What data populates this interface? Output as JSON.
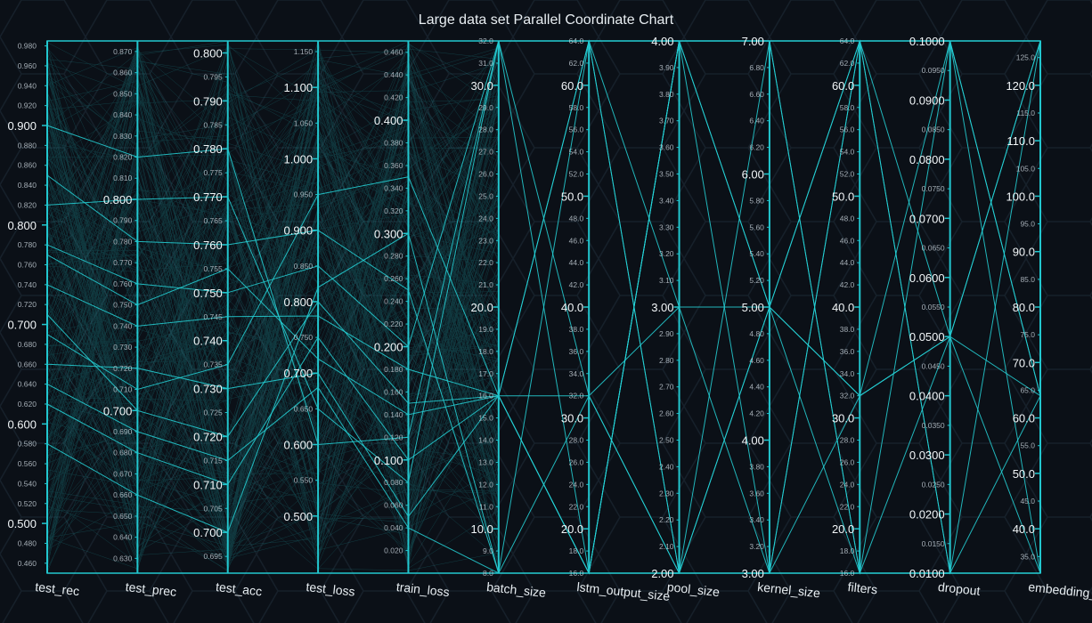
{
  "chart_data": {
    "type": "parallel-coordinates",
    "title": "Large data set Parallel Coordinate Chart",
    "grid": false,
    "colors": {
      "background": "#0b1017",
      "axis": "#22c7cf",
      "line": "#26d4d8",
      "title": "#e8eef2",
      "tick_text": "#c9d3db",
      "axis_label": "#e8eef2",
      "hex_pattern": "#16202a"
    },
    "axes": [
      {
        "name": "test_rec",
        "min": 0.45,
        "max": 0.985,
        "major_ticks": [
          0.5,
          0.6,
          0.7,
          0.8,
          0.9
        ],
        "major_decimals": 3,
        "minor_ticks": [
          0.46,
          0.48,
          0.52,
          0.54,
          0.56,
          0.58,
          0.62,
          0.64,
          0.66,
          0.68,
          0.72,
          0.74,
          0.76,
          0.78,
          0.82,
          0.84,
          0.86,
          0.88,
          0.92,
          0.94,
          0.96,
          0.98
        ],
        "minor_decimals": 3
      },
      {
        "name": "test_prec",
        "min": 0.623,
        "max": 0.875,
        "major_ticks": [
          0.7,
          0.8
        ],
        "major_decimals": 3,
        "minor_ticks": [
          0.63,
          0.64,
          0.65,
          0.66,
          0.67,
          0.68,
          0.69,
          0.71,
          0.72,
          0.73,
          0.74,
          0.75,
          0.76,
          0.77,
          0.78,
          0.79,
          0.81,
          0.82,
          0.83,
          0.84,
          0.85,
          0.86,
          0.87
        ],
        "minor_decimals": 3
      },
      {
        "name": "test_acc",
        "min": 0.6915,
        "max": 0.8025,
        "major_ticks": [
          0.7,
          0.71,
          0.72,
          0.73,
          0.74,
          0.75,
          0.76,
          0.77,
          0.78,
          0.79,
          0.8
        ],
        "major_decimals": 3,
        "minor_ticks": [
          0.695,
          0.705,
          0.715,
          0.725,
          0.735,
          0.745,
          0.755,
          0.765,
          0.775,
          0.785,
          0.795
        ],
        "minor_decimals": 3
      },
      {
        "name": "test_loss",
        "min": 0.42,
        "max": 1.165,
        "major_ticks": [
          0.5,
          0.6,
          0.7,
          0.8,
          0.9,
          1.0,
          1.1
        ],
        "major_decimals": 3,
        "minor_ticks": [
          0.55,
          0.65,
          0.75,
          0.85,
          0.95,
          1.05,
          1.15
        ],
        "minor_decimals": 3
      },
      {
        "name": "train_loss",
        "min": 0.0,
        "max": 0.47,
        "major_ticks": [
          0.1,
          0.2,
          0.3,
          0.4
        ],
        "major_decimals": 3,
        "minor_ticks": [
          0.02,
          0.04,
          0.06,
          0.08,
          0.12,
          0.14,
          0.16,
          0.18,
          0.22,
          0.24,
          0.26,
          0.28,
          0.32,
          0.34,
          0.36,
          0.38,
          0.42,
          0.44,
          0.46
        ],
        "minor_decimals": 3
      },
      {
        "name": "batch_size",
        "min": 8.0,
        "max": 32.0,
        "major_ticks": [
          10.0,
          20.0,
          30.0
        ],
        "major_decimals": 1,
        "minor_ticks": [
          8,
          9,
          11,
          12,
          13,
          14,
          15,
          16,
          17,
          18,
          19,
          21,
          22,
          23,
          24,
          25,
          26,
          27,
          28,
          29,
          31,
          32
        ],
        "minor_decimals": 1
      },
      {
        "name": "lstm_output_size",
        "min": 16.0,
        "max": 64.0,
        "major_ticks": [
          20.0,
          30.0,
          40.0,
          50.0,
          60.0
        ],
        "major_decimals": 1,
        "minor_ticks": [
          16,
          18,
          22,
          24,
          26,
          28,
          32,
          34,
          36,
          38,
          42,
          44,
          46,
          48,
          52,
          54,
          56,
          58,
          62,
          64
        ],
        "minor_decimals": 1
      },
      {
        "name": "pool_size",
        "min": 2.0,
        "max": 4.0,
        "major_ticks": [
          2.0,
          3.0,
          4.0
        ],
        "major_decimals": 2,
        "minor_ticks": [
          2.1,
          2.2,
          2.3,
          2.4,
          2.5,
          2.6,
          2.7,
          2.8,
          2.9,
          3.1,
          3.2,
          3.3,
          3.4,
          3.5,
          3.6,
          3.7,
          3.8,
          3.9
        ],
        "minor_decimals": 2
      },
      {
        "name": "kernel_size",
        "min": 3.0,
        "max": 7.0,
        "major_ticks": [
          3.0,
          4.0,
          5.0,
          6.0,
          7.0
        ],
        "major_decimals": 2,
        "minor_ticks": [
          3.2,
          3.4,
          3.6,
          3.8,
          4.2,
          4.4,
          4.6,
          4.8,
          5.2,
          5.4,
          5.6,
          5.8,
          6.2,
          6.4,
          6.6,
          6.8
        ],
        "minor_decimals": 2
      },
      {
        "name": "filters",
        "min": 16.0,
        "max": 64.0,
        "major_ticks": [
          20.0,
          30.0,
          40.0,
          50.0,
          60.0
        ],
        "major_decimals": 1,
        "minor_ticks": [
          16,
          18,
          22,
          24,
          26,
          28,
          32,
          34,
          36,
          38,
          42,
          44,
          46,
          48,
          52,
          54,
          56,
          58,
          62,
          64
        ],
        "minor_decimals": 1
      },
      {
        "name": "dropout",
        "min": 0.01,
        "max": 0.1,
        "major_ticks": [
          0.01,
          0.02,
          0.03,
          0.04,
          0.05,
          0.06,
          0.07,
          0.08,
          0.09,
          0.1
        ],
        "major_decimals": 4,
        "minor_ticks": [
          0.015,
          0.025,
          0.035,
          0.045,
          0.055,
          0.065,
          0.075,
          0.085,
          0.095
        ],
        "minor_decimals": 4
      },
      {
        "name": "embedding_dim",
        "min": 32.0,
        "max": 128.0,
        "major_ticks": [
          40.0,
          50.0,
          60.0,
          70.0,
          80.0,
          90.0,
          100.0,
          110.0,
          120.0
        ],
        "major_decimals": 1,
        "minor_ticks": [
          35,
          45,
          55,
          65,
          75,
          85,
          95,
          105,
          115,
          125
        ],
        "minor_decimals": 1
      }
    ],
    "records_note_free": true,
    "records": [
      [
        0.71,
        0.7,
        0.72,
        0.8,
        0.15,
        16,
        64,
        2,
        5,
        64,
        0.1,
        128
      ],
      [
        0.62,
        0.68,
        0.71,
        0.75,
        0.1,
        16,
        16,
        4,
        5,
        32,
        0.05,
        128
      ],
      [
        0.78,
        0.76,
        0.75,
        0.85,
        0.2,
        32,
        16,
        4,
        3,
        16,
        0.1,
        64
      ],
      [
        0.85,
        0.78,
        0.76,
        0.9,
        0.25,
        8,
        64,
        2,
        7,
        64,
        0.01,
        32
      ],
      [
        0.66,
        0.72,
        0.73,
        0.7,
        0.05,
        16,
        32,
        3,
        5,
        16,
        0.01,
        32
      ],
      [
        0.9,
        0.82,
        0.78,
        0.6,
        0.12,
        32,
        64,
        4,
        7,
        16,
        0.05,
        32
      ],
      [
        0.74,
        0.74,
        0.745,
        0.78,
        0.18,
        16,
        16,
        2,
        3,
        64,
        0.1,
        64
      ],
      [
        0.58,
        0.66,
        0.7,
        0.82,
        0.3,
        8,
        16,
        4,
        7,
        16,
        0.01,
        128
      ],
      [
        0.82,
        0.8,
        0.77,
        0.65,
        0.08,
        32,
        32,
        2,
        5,
        64,
        0.05,
        64
      ],
      [
        0.69,
        0.71,
        0.735,
        0.95,
        0.35,
        16,
        64,
        3,
        3,
        32,
        0.1,
        32
      ],
      [
        0.77,
        0.75,
        0.755,
        0.72,
        0.14,
        16,
        16,
        4,
        5,
        32,
        0.05,
        128
      ],
      [
        0.64,
        0.69,
        0.715,
        0.68,
        0.04,
        8,
        32,
        2,
        3,
        64,
        0.01,
        64
      ]
    ]
  }
}
